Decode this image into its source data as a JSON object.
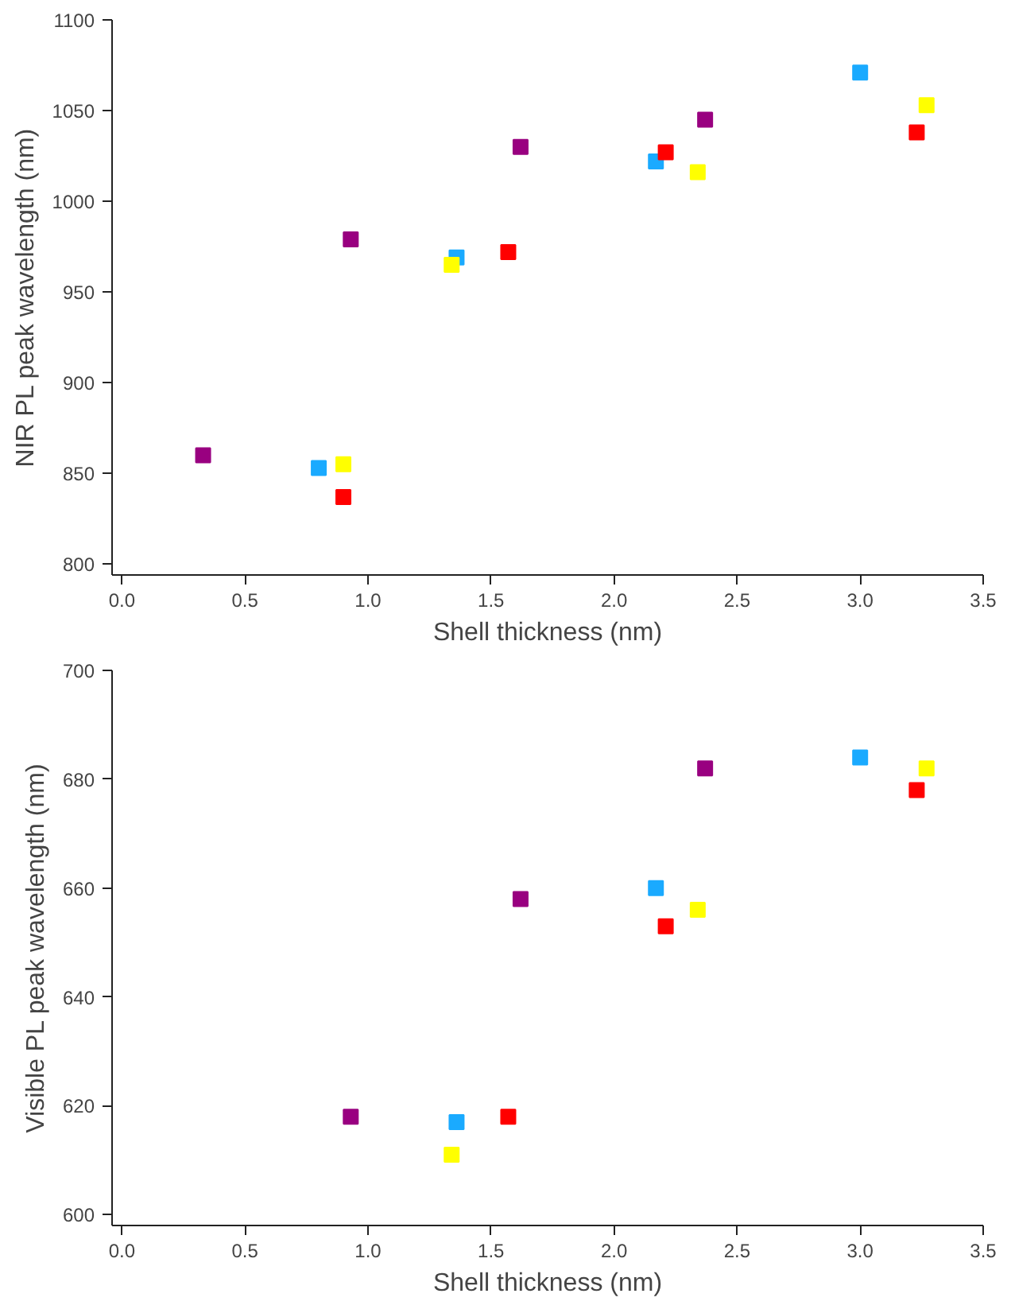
{
  "chart_data": [
    {
      "type": "scatter",
      "xlabel": "Shell thickness (nm)",
      "ylabel": "NIR PL peak wavelength (nm)",
      "xlim": [
        -0.04,
        3.5
      ],
      "ylim": [
        794,
        1100
      ],
      "xticks": [
        {
          "value": 0,
          "label": "0.0"
        },
        0.5,
        {
          "value": 1,
          "label": "1.0"
        },
        1.5,
        {
          "value": 2,
          "label": "2.0"
        },
        2.5,
        {
          "value": 3,
          "label": "3.0"
        },
        3.5
      ],
      "yticks": [
        800,
        850,
        900,
        950,
        1000,
        1050,
        1100
      ],
      "grid": false,
      "marker": "square",
      "series": [
        {
          "color": "#990080",
          "x": [
            0.33,
            0.93,
            1.62,
            2.37
          ],
          "values": [
            860,
            979,
            1030,
            1045
          ]
        },
        {
          "color": "#1aaaff",
          "x": [
            0.8,
            1.36,
            2.17,
            3.0
          ],
          "values": [
            853,
            969,
            1022,
            1071
          ]
        },
        {
          "color": "#ffff00",
          "x": [
            0.9,
            1.34,
            2.34,
            3.27
          ],
          "values": [
            855,
            965,
            1016,
            1053
          ]
        },
        {
          "color": "#ff0000",
          "x": [
            0.9,
            1.57,
            2.21,
            3.23
          ],
          "values": [
            837,
            972,
            1027,
            1038
          ]
        }
      ]
    },
    {
      "type": "scatter",
      "xlabel": "Shell thickness (nm)",
      "ylabel": "Visible PL peak wavelength (nm)",
      "xlim": [
        -0.04,
        3.5
      ],
      "ylim": [
        598,
        700
      ],
      "xticks": [
        {
          "value": 0,
          "label": "0.0"
        },
        0.5,
        {
          "value": 1,
          "label": "1.0"
        },
        1.5,
        {
          "value": 2,
          "label": "2.0"
        },
        2.5,
        {
          "value": 3,
          "label": "3.0"
        },
        3.5
      ],
      "yticks": [
        600,
        620,
        640,
        660,
        680,
        700
      ],
      "grid": false,
      "marker": "square",
      "series": [
        {
          "color": "#990080",
          "x": [
            0.93,
            1.62,
            2.37
          ],
          "values": [
            618,
            658,
            682
          ]
        },
        {
          "color": "#1aaaff",
          "x": [
            1.36,
            2.17,
            3.0
          ],
          "values": [
            617,
            660,
            684
          ]
        },
        {
          "color": "#ffff00",
          "x": [
            1.34,
            2.34,
            3.27
          ],
          "values": [
            611,
            656,
            682
          ]
        },
        {
          "color": "#ff0000",
          "x": [
            1.57,
            2.21,
            3.23
          ],
          "values": [
            618,
            653,
            678
          ]
        }
      ]
    }
  ]
}
